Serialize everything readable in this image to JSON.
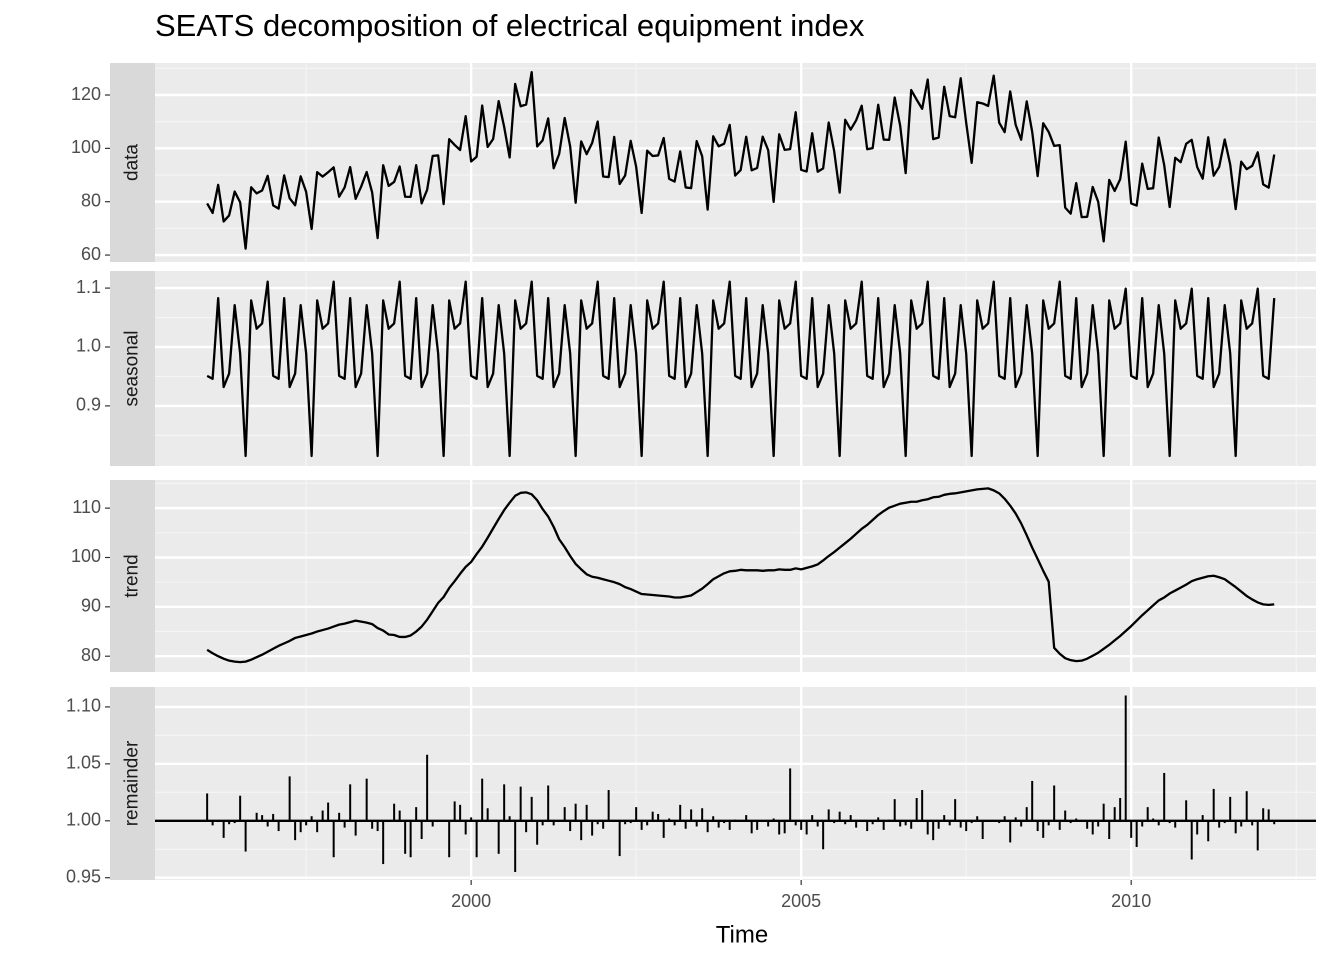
{
  "chart_data": {
    "type": "line",
    "title": "SEATS decomposition of electrical equipment index",
    "x_label": "Time",
    "xlim": [
      1995.21,
      2012.8
    ],
    "xticks": [
      2000,
      2005,
      2010
    ],
    "grid": true,
    "color": "#000000",
    "x": [
      1996.0,
      1996.083,
      1996.167,
      1996.25,
      1996.333,
      1996.417,
      1996.5,
      1996.583,
      1996.667,
      1996.75,
      1996.833,
      1996.917,
      1997.0,
      1997.083,
      1997.167,
      1997.25,
      1997.333,
      1997.417,
      1997.5,
      1997.583,
      1997.667,
      1997.75,
      1997.833,
      1997.917,
      1998.0,
      1998.083,
      1998.167,
      1998.25,
      1998.333,
      1998.417,
      1998.5,
      1998.583,
      1998.667,
      1998.75,
      1998.833,
      1998.917,
      1999.0,
      1999.083,
      1999.167,
      1999.25,
      1999.333,
      1999.417,
      1999.5,
      1999.583,
      1999.667,
      1999.75,
      1999.833,
      1999.917,
      2000.0,
      2000.083,
      2000.167,
      2000.25,
      2000.333,
      2000.417,
      2000.5,
      2000.583,
      2000.667,
      2000.75,
      2000.833,
      2000.917,
      2001.0,
      2001.083,
      2001.167,
      2001.25,
      2001.333,
      2001.417,
      2001.5,
      2001.583,
      2001.667,
      2001.75,
      2001.833,
      2001.917,
      2002.0,
      2002.083,
      2002.167,
      2002.25,
      2002.333,
      2002.417,
      2002.5,
      2002.583,
      2002.667,
      2002.75,
      2002.833,
      2002.917,
      2003.0,
      2003.083,
      2003.167,
      2003.25,
      2003.333,
      2003.417,
      2003.5,
      2003.583,
      2003.667,
      2003.75,
      2003.833,
      2003.917,
      2004.0,
      2004.083,
      2004.167,
      2004.25,
      2004.333,
      2004.417,
      2004.5,
      2004.583,
      2004.667,
      2004.75,
      2004.833,
      2004.917,
      2005.0,
      2005.083,
      2005.167,
      2005.25,
      2005.333,
      2005.417,
      2005.5,
      2005.583,
      2005.667,
      2005.75,
      2005.833,
      2005.917,
      2006.0,
      2006.083,
      2006.167,
      2006.25,
      2006.333,
      2006.417,
      2006.5,
      2006.583,
      2006.667,
      2006.75,
      2006.833,
      2006.917,
      2007.0,
      2007.083,
      2007.167,
      2007.25,
      2007.333,
      2007.417,
      2007.5,
      2007.583,
      2007.667,
      2007.75,
      2007.833,
      2007.917,
      2008.0,
      2008.083,
      2008.167,
      2008.25,
      2008.333,
      2008.417,
      2008.5,
      2008.583,
      2008.667,
      2008.75,
      2008.833,
      2008.917,
      2009.0,
      2009.083,
      2009.167,
      2009.25,
      2009.333,
      2009.417,
      2009.5,
      2009.583,
      2009.667,
      2009.75,
      2009.833,
      2009.917,
      2010.0,
      2010.083,
      2010.167,
      2010.25,
      2010.333,
      2010.417,
      2010.5,
      2010.583,
      2010.667,
      2010.75,
      2010.833,
      2010.917,
      2011.0,
      2011.083,
      2011.167,
      2011.25,
      2011.333,
      2011.417,
      2011.5,
      2011.583,
      2011.667,
      2011.75,
      2011.833,
      2011.917,
      2012.0,
      2012.083,
      2012.167
    ],
    "facets": [
      {
        "name": "data",
        "type": "line",
        "ylim": [
          57.4,
          132.0
        ],
        "yticks": [
          60,
          80,
          100,
          120
        ],
        "values": [
          79.35,
          75.78,
          86.32,
          72.6,
          74.86,
          83.81,
          79.8,
          62.41,
          85.41,
          83.11,
          84.21,
          89.7,
          78.64,
          77.42,
          89.86,
          81.27,
          78.68,
          89.51,
          83.67,
          69.8,
          91.09,
          89.43,
          91.04,
          92.87,
          81.87,
          85.36,
          92.98,
          81.09,
          85.64,
          91.14,
          83.46,
          66.36,
          93.68,
          85.92,
          87.4,
          93.22,
          81.86,
          81.82,
          93.71,
          79.39,
          84.47,
          97.16,
          97.38,
          79.12,
          103.44,
          101.29,
          99.39,
          112.06,
          95.07,
          96.84,
          116.04,
          100.51,
          103.51,
          117.71,
          108.06,
          96.6,
          124.17,
          115.78,
          116.43,
          128.58,
          100.71,
          103.01,
          111.24,
          92.53,
          97.84,
          111.38,
          100.73,
          79.61,
          102.63,
          97.83,
          102.02,
          110.07,
          89.45,
          89.21,
          104.28,
          86.63,
          89.82,
          102.82,
          93.08,
          75.77,
          99.14,
          97.14,
          97.35,
          103.88,
          88.56,
          87.54,
          98.85,
          85.35,
          85.08,
          102.73,
          97.04,
          77.03,
          104.53,
          100.76,
          101.75,
          108.79,
          89.79,
          91.85,
          104.36,
          91.78,
          92.65,
          104.38,
          99.38,
          79.93,
          105.26,
          99.45,
          99.71,
          113.55,
          91.92,
          91.34,
          105.65,
          91.24,
          92.51,
          109.69,
          98.93,
          83.4,
          110.72,
          107.04,
          110.52,
          116.0,
          99.66,
          100.09,
          116.36,
          103.3,
          103.18,
          119.04,
          108.47,
          90.72,
          121.86,
          118.23,
          114.84,
          125.8,
          103.45,
          104.06,
          123.09,
          112.08,
          111.64,
          126.28,
          109.65,
          94.55,
          117.33,
          116.83,
          115.91,
          127.27,
          109.64,
          106.09,
          121.33,
          108.8,
          103.25,
          117.61,
          106.2,
          89.6,
          109.42,
          106.14,
          100.92,
          101.2,
          77.78,
          75.54,
          86.97,
          74.22,
          74.34,
          85.53,
          79.97,
          65.13,
          88.16,
          84.04,
          88.42,
          102.5,
          79.37,
          78.57,
          94.27,
          84.8,
          85.07,
          104.06,
          93.74,
          78.04,
          96.49,
          94.82,
          101.71,
          103.19,
          92.99,
          88.64,
          104.17,
          89.75,
          93.05,
          103.31,
          93.97,
          77.23,
          95.0,
          92.19,
          93.42,
          98.51,
          86.49,
          85.28,
          97.68
        ]
      },
      {
        "name": "seasonal",
        "type": "line",
        "ylim": [
          0.798,
          1.129
        ],
        "yticks": [
          0.9,
          {
            "value": 1,
            "label": "1.0"
          },
          1.1
        ],
        "values": [
          0.951,
          0.946,
          1.083,
          0.932,
          0.955,
          1.071,
          0.989,
          0.815,
          1.079,
          1.031,
          1.04,
          1.111,
          0.951,
          0.946,
          1.083,
          0.932,
          0.955,
          1.071,
          0.989,
          0.815,
          1.079,
          1.031,
          1.04,
          1.111,
          0.951,
          0.946,
          1.083,
          0.932,
          0.955,
          1.071,
          0.989,
          0.815,
          1.079,
          1.031,
          1.04,
          1.111,
          0.951,
          0.946,
          1.083,
          0.932,
          0.955,
          1.071,
          0.989,
          0.815,
          1.079,
          1.031,
          1.04,
          1.111,
          0.951,
          0.946,
          1.083,
          0.932,
          0.955,
          1.071,
          0.989,
          0.815,
          1.079,
          1.031,
          1.04,
          1.111,
          0.951,
          0.946,
          1.083,
          0.932,
          0.955,
          1.071,
          0.989,
          0.815,
          1.079,
          1.031,
          1.04,
          1.111,
          0.951,
          0.946,
          1.083,
          0.932,
          0.955,
          1.071,
          0.989,
          0.815,
          1.079,
          1.031,
          1.04,
          1.111,
          0.951,
          0.946,
          1.083,
          0.932,
          0.955,
          1.071,
          0.989,
          0.815,
          1.079,
          1.031,
          1.04,
          1.111,
          0.951,
          0.946,
          1.083,
          0.932,
          0.955,
          1.071,
          0.989,
          0.815,
          1.079,
          1.031,
          1.04,
          1.111,
          0.951,
          0.946,
          1.083,
          0.932,
          0.955,
          1.071,
          0.989,
          0.815,
          1.079,
          1.031,
          1.04,
          1.111,
          0.951,
          0.946,
          1.083,
          0.932,
          0.955,
          1.071,
          0.989,
          0.815,
          1.079,
          1.031,
          1.04,
          1.111,
          0.951,
          0.946,
          1.083,
          0.932,
          0.955,
          1.071,
          0.989,
          0.815,
          1.079,
          1.031,
          1.04,
          1.111,
          0.951,
          0.946,
          1.083,
          0.932,
          0.955,
          1.071,
          0.989,
          0.815,
          1.079,
          1.031,
          1.04,
          1.111,
          0.951,
          0.946,
          1.083,
          0.932,
          0.955,
          1.071,
          0.989,
          0.815,
          1.079,
          1.031,
          1.04,
          1.099,
          0.951,
          0.946,
          1.083,
          0.932,
          0.955,
          1.071,
          0.989,
          0.815,
          1.079,
          1.031,
          1.04,
          1.099,
          0.951,
          0.946,
          1.083,
          0.932,
          0.955,
          1.071,
          0.989,
          0.815,
          1.079,
          1.031,
          1.04,
          1.099,
          0.951,
          0.946,
          1.083
        ]
      },
      {
        "name": "trend",
        "type": "line",
        "ylim": [
          76.8,
          115.7
        ],
        "yticks": [
          80,
          90,
          100,
          110
        ],
        "values": [
          81.3,
          80.6,
          80.0,
          79.5,
          79.1,
          78.9,
          78.8,
          78.9,
          79.3,
          79.8,
          80.3,
          80.9,
          81.5,
          82.1,
          82.6,
          83.1,
          83.7,
          84.0,
          84.3,
          84.6,
          85.0,
          85.3,
          85.6,
          86.0,
          86.4,
          86.6,
          86.9,
          87.2,
          87.0,
          86.8,
          86.5,
          85.7,
          85.2,
          84.4,
          84.3,
          83.9,
          83.9,
          84.2,
          85.0,
          86.0,
          87.4,
          89.1,
          90.8,
          92.0,
          93.8,
          95.2,
          96.7,
          98.1,
          99.1,
          100.7,
          102.2,
          104.0,
          105.9,
          107.8,
          109.6,
          111.1,
          112.5,
          113.1,
          113.2,
          112.8,
          111.6,
          109.8,
          108.3,
          106.2,
          103.7,
          102.1,
          100.3,
          98.7,
          97.6,
          96.6,
          96.1,
          95.9,
          95.6,
          95.3,
          95.0,
          94.6,
          94.0,
          93.6,
          93.1,
          92.6,
          92.5,
          92.4,
          92.3,
          92.2,
          92.1,
          91.9,
          91.9,
          92.1,
          92.3,
          93.0,
          93.7,
          94.6,
          95.6,
          96.2,
          96.8,
          97.2,
          97.3,
          97.5,
          97.4,
          97.4,
          97.4,
          97.3,
          97.4,
          97.4,
          97.6,
          97.5,
          97.5,
          97.8,
          97.6,
          97.9,
          98.2,
          98.6,
          99.4,
          100.3,
          101.1,
          102.0,
          102.9,
          103.8,
          104.8,
          105.8,
          106.6,
          107.6,
          108.6,
          109.4,
          110.1,
          110.5,
          110.9,
          111.1,
          111.3,
          111.3,
          111.6,
          111.8,
          112.2,
          112.3,
          112.7,
          112.9,
          113.0,
          113.2,
          113.4,
          113.6,
          113.8,
          113.9,
          114.0,
          113.6,
          113.0,
          111.9,
          110.5,
          108.9,
          106.9,
          104.5,
          102.0,
          99.7,
          97.3,
          95.1,
          81.7,
          80.5,
          79.6,
          79.2,
          79.0,
          79.1,
          79.5,
          80.1,
          80.7,
          81.5,
          82.3,
          83.2,
          84.1,
          85.1,
          86.1,
          87.2,
          88.3,
          89.3,
          90.3,
          91.3,
          91.9,
          92.7,
          93.3,
          93.9,
          94.5,
          95.2,
          95.6,
          95.9,
          96.2,
          96.3,
          96.0,
          95.6,
          94.8,
          94.0,
          93.1,
          92.2,
          91.5,
          90.9,
          90.5,
          90.4,
          90.5
        ]
      },
      {
        "name": "remainder",
        "type": "bar",
        "baseline": 1,
        "ylim": [
          0.948,
          1.1175
        ],
        "yticks": [
          0.95,
          {
            "value": 1,
            "label": "1.00"
          },
          1.05,
          {
            "value": 1.1,
            "label": "1.10"
          }
        ],
        "values": [
          1.024,
          0.996,
          0.999,
          0.985,
          0.997,
          0.998,
          1.022,
          0.973,
          1.0,
          1.007,
          1.005,
          0.995,
          1.006,
          0.991,
          1.0,
          1.039,
          0.983,
          0.99,
          0.996,
          1.004,
          0.99,
          1.009,
          1.016,
          0.968,
          1.007,
          0.994,
          1.032,
          0.987,
          0.999,
          1.037,
          0.993,
          0.991,
          0.962,
          0.999,
          1.015,
          1.009,
          0.971,
          0.968,
          1.012,
          0.984,
          1.058,
          0.995,
          1.0,
          0.999,
          0.968,
          1.017,
          1.014,
          0.988,
          1.003,
          0.968,
          1.037,
          1.011,
          0.999,
          0.971,
          1.032,
          1.004,
          0.955,
          1.03,
          0.99,
          1.021,
          0.979,
          0.996,
          1.031,
          0.996,
          1.0,
          1.012,
          0.991,
          1.015,
          0.983,
          1.014,
          0.987,
          0.997,
          0.993,
          1.027,
          1.0,
          0.969,
          0.997,
          0.998,
          1.012,
          0.992,
          0.996,
          1.008,
          1.006,
          0.985,
          1.002,
          0.996,
          1.014,
          0.993,
          1.01,
          0.995,
          1.011,
          0.99,
          1.004,
          0.994,
          0.998,
          0.992,
          1.001,
          0.999,
          1.005,
          0.989,
          0.992,
          1.0,
          0.995,
          1.002,
          0.988,
          0.989,
          1.046,
          0.996,
          0.992,
          0.988,
          1.005,
          0.995,
          0.975,
          1.01,
          0.998,
          1.008,
          0.997,
          1.005,
          0.994,
          1.0,
          0.991,
          0.997,
          1.003,
          0.992,
          1.001,
          1.019,
          0.995,
          0.996,
          0.993,
          1.02,
          1.027,
          0.988,
          0.983,
          0.993,
          1.005,
          0.996,
          1.019,
          0.994,
          0.991,
          0.998,
          1.004,
          0.984,
          1.0,
          0.999,
          0.998,
          1.004,
          0.981,
          1.003,
          0.995,
          1.012,
          1.035,
          0.991,
          0.985,
          0.996,
          1.031,
          0.992,
          1.009,
          0.998,
          1.002,
          0.999,
          0.993,
          0.988,
          0.995,
          1.015,
          0.984,
          1.012,
          1.02,
          1.11,
          0.985,
          0.977,
          0.995,
          1.012,
          1.002,
          0.996,
          1.042,
          0.998,
          0.994,
          1.0,
          1.018,
          0.966,
          0.988,
          1.005,
          0.982,
          1.028,
          0.994,
          0.998,
          1.021,
          0.989,
          0.995,
          1.026,
          0.996,
          0.974,
          1.011,
          1.01,
          0.997
        ]
      }
    ]
  }
}
